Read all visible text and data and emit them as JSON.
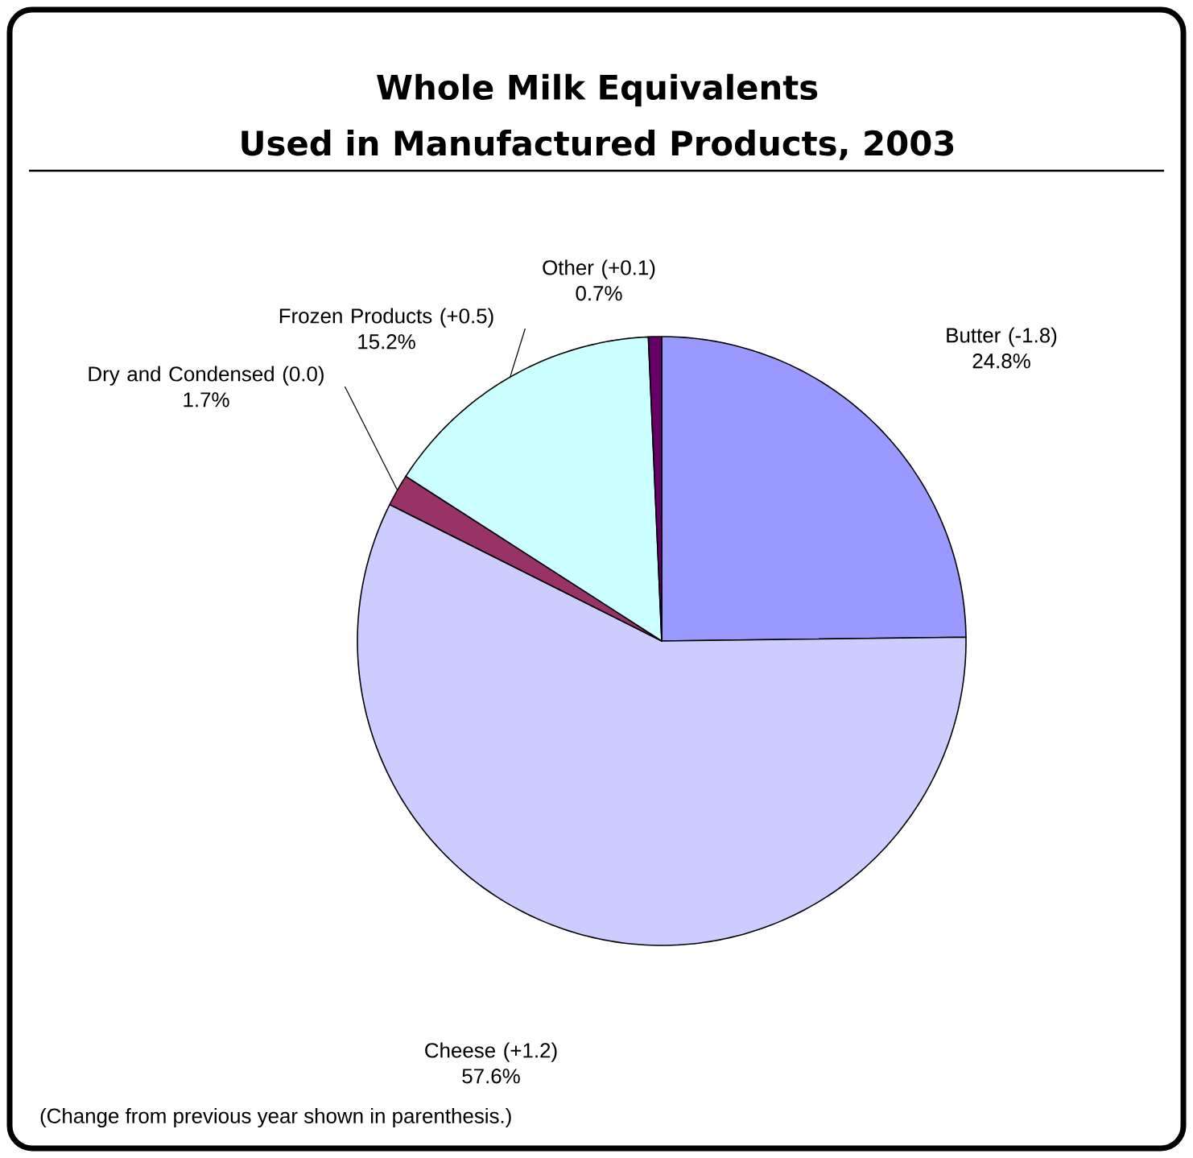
{
  "chart_data": {
    "type": "pie",
    "title": "Whole Milk Equivalents",
    "subtitle": "Used in Manufactured Products, 2003",
    "categories": [
      "Butter (-1.8)",
      "Cheese (+1.2)",
      "Dry and Condensed (0.0)",
      "Frozen Products (+0.5)",
      "Other (+0.1)"
    ],
    "values": [
      24.8,
      57.6,
      1.7,
      15.2,
      0.7
    ],
    "colors": [
      "#9999ff",
      "#ccccff",
      "#993366",
      "#ccffff",
      "#660066"
    ],
    "value_labels": [
      "24.8%",
      "57.6%",
      "1.7%",
      "15.2%",
      "0.7%"
    ],
    "annotations": [
      "(Change from previous year shown in parenthesis.)"
    ]
  }
}
